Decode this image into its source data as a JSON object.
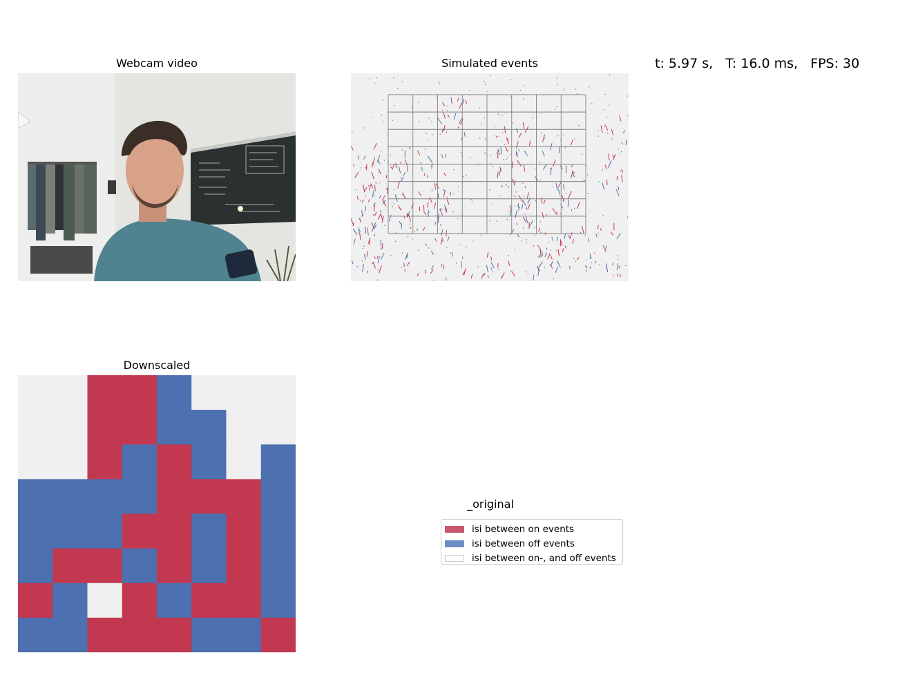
{
  "panels": {
    "webcam_title": "Webcam video",
    "events_title": "Simulated events",
    "downscaled_title": "Downscaled"
  },
  "status": {
    "text": "t: 5.97 s,   T: 16.0 ms,   FPS: 30"
  },
  "legend": {
    "title": "_original",
    "items": [
      {
        "label": "isi between on events",
        "color": "#c8586c"
      },
      {
        "label": "isi between off events",
        "color": "#6b8cc4"
      },
      {
        "label": "isi between on-, and off events",
        "color": "#ffffff"
      }
    ]
  },
  "colors": {
    "on": "#c13850",
    "off": "#4c70b0",
    "empty": "#f0f0f0",
    "grid": "#808080"
  },
  "events_grid": {
    "cols": 8,
    "rows": 8
  },
  "downscaled_grid": {
    "cols": 8,
    "rows": 8,
    "cells": [
      [
        "e",
        "e",
        "r",
        "r",
        "b",
        "e",
        "e",
        "e"
      ],
      [
        "e",
        "e",
        "r",
        "r",
        "b",
        "b",
        "e",
        "e"
      ],
      [
        "e",
        "e",
        "r",
        "b",
        "r",
        "b",
        "e",
        "b"
      ],
      [
        "b",
        "b",
        "b",
        "b",
        "r",
        "r",
        "r",
        "b"
      ],
      [
        "b",
        "b",
        "b",
        "r",
        "r",
        "b",
        "r",
        "b"
      ],
      [
        "b",
        "r",
        "r",
        "b",
        "r",
        "b",
        "r",
        "b"
      ],
      [
        "r",
        "b",
        "e",
        "r",
        "b",
        "r",
        "r",
        "b"
      ],
      [
        "b",
        "b",
        "r",
        "r",
        "r",
        "b",
        "b",
        "r"
      ]
    ]
  }
}
